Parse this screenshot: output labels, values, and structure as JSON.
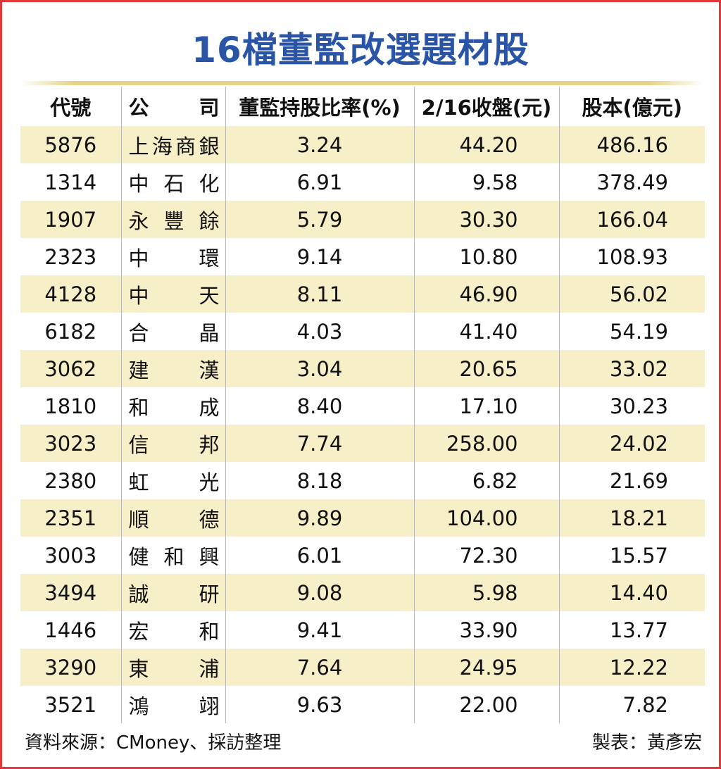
{
  "title": "16檔董監改選題材股",
  "headers": {
    "code": "代號",
    "company_a": "公",
    "company_b": "司",
    "ratio": "董監持股比率(%)",
    "close": "2/16收盤(元)",
    "capital": "股本(億元)"
  },
  "rows": [
    {
      "code": "5876",
      "company": [
        "上",
        "海",
        "商",
        "銀"
      ],
      "ratio": "3.24",
      "close": "44.20",
      "capital": "486.16"
    },
    {
      "code": "1314",
      "company": [
        "中",
        "石",
        "化"
      ],
      "ratio": "6.91",
      "close": "9.58",
      "capital": "378.49"
    },
    {
      "code": "1907",
      "company": [
        "永",
        "豐",
        "餘"
      ],
      "ratio": "5.79",
      "close": "30.30",
      "capital": "166.04"
    },
    {
      "code": "2323",
      "company": [
        "中",
        "環"
      ],
      "ratio": "9.14",
      "close": "10.80",
      "capital": "108.93"
    },
    {
      "code": "4128",
      "company": [
        "中",
        "天"
      ],
      "ratio": "8.11",
      "close": "46.90",
      "capital": "56.02"
    },
    {
      "code": "6182",
      "company": [
        "合",
        "晶"
      ],
      "ratio": "4.03",
      "close": "41.40",
      "capital": "54.19"
    },
    {
      "code": "3062",
      "company": [
        "建",
        "漢"
      ],
      "ratio": "3.04",
      "close": "20.65",
      "capital": "33.02"
    },
    {
      "code": "1810",
      "company": [
        "和",
        "成"
      ],
      "ratio": "8.40",
      "close": "17.10",
      "capital": "30.23"
    },
    {
      "code": "3023",
      "company": [
        "信",
        "邦"
      ],
      "ratio": "7.74",
      "close": "258.00",
      "capital": "24.02"
    },
    {
      "code": "2380",
      "company": [
        "虹",
        "光"
      ],
      "ratio": "8.18",
      "close": "6.82",
      "capital": "21.69"
    },
    {
      "code": "2351",
      "company": [
        "順",
        "德"
      ],
      "ratio": "9.89",
      "close": "104.00",
      "capital": "18.21"
    },
    {
      "code": "3003",
      "company": [
        "健",
        "和",
        "興"
      ],
      "ratio": "6.01",
      "close": "72.30",
      "capital": "15.57"
    },
    {
      "code": "3494",
      "company": [
        "誠",
        "研"
      ],
      "ratio": "9.08",
      "close": "5.98",
      "capital": "14.40"
    },
    {
      "code": "1446",
      "company": [
        "宏",
        "和"
      ],
      "ratio": "9.41",
      "close": "33.90",
      "capital": "13.77"
    },
    {
      "code": "3290",
      "company": [
        "東",
        "浦"
      ],
      "ratio": "7.64",
      "close": "24.95",
      "capital": "12.22"
    },
    {
      "code": "3521",
      "company": [
        "鴻",
        "翊"
      ],
      "ratio": "9.63",
      "close": "22.00",
      "capital": "7.82"
    }
  ],
  "footer": {
    "source": "資料來源：CMoney、採訪整理",
    "maker": "製表：黃彥宏"
  },
  "colors": {
    "title": "#2a55a6",
    "border": "#e23a3a",
    "row_alt": "#f6efc8"
  }
}
